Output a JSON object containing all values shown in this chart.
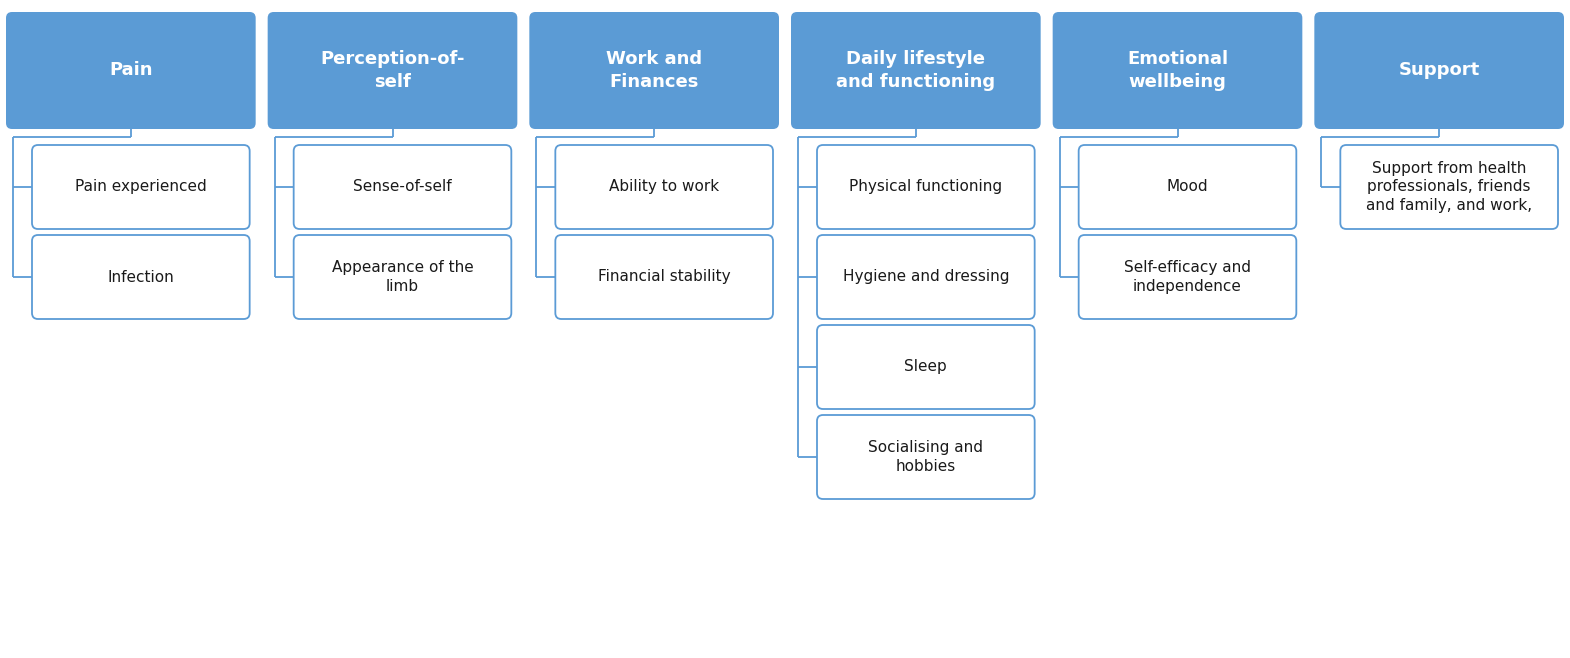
{
  "categories": [
    {
      "title": "Pain",
      "children": [
        "Pain experienced",
        "Infection"
      ],
      "col": 0
    },
    {
      "title": "Perception-of-\nself",
      "children": [
        "Sense-of-self",
        "Appearance of the\nlimb"
      ],
      "col": 1
    },
    {
      "title": "Work and\nFinances",
      "children": [
        "Ability to work",
        "Financial stability"
      ],
      "col": 2
    },
    {
      "title": "Daily lifestyle\nand functioning",
      "children": [
        "Physical functioning",
        "Hygiene and dressing",
        "Sleep",
        "Socialising and\nhobbies"
      ],
      "col": 3
    },
    {
      "title": "Emotional\nwellbeing",
      "children": [
        "Mood",
        "Self-efficacy and\nindependence"
      ],
      "col": 4
    },
    {
      "title": "Support",
      "children": [
        "Support from health\nprofessionals, friends\nand family, and work,"
      ],
      "col": 5
    }
  ],
  "header_bg_color": "#5b9bd5",
  "header_text_color": "#ffffff",
  "child_bg_color": "#ffffff",
  "child_border_color": "#5b9bd5",
  "child_text_color": "#1a1a1a",
  "connector_color": "#5b9bd5",
  "background_color": "#ffffff",
  "header_fontsize": 13,
  "child_fontsize": 11,
  "fig_width": 15.7,
  "fig_height": 6.58,
  "dpi": 100
}
